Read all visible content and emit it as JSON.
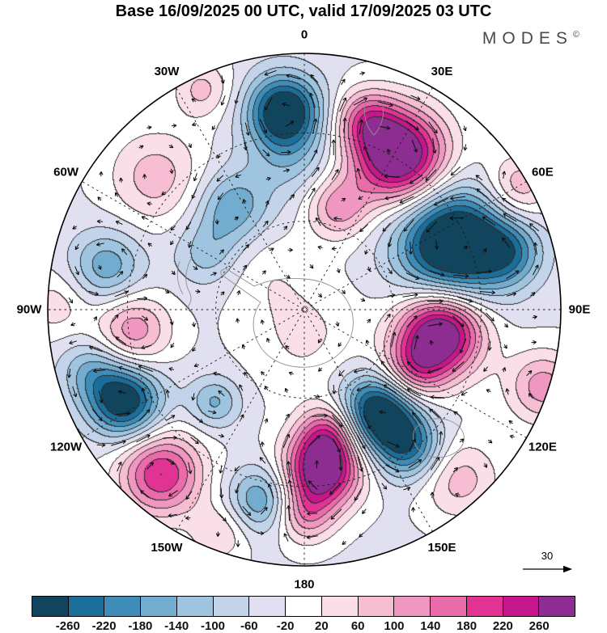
{
  "title": "Base 16/09/2025 00 UTC, valid 17/09/2025 03 UTC",
  "branding": {
    "name": "MODES",
    "mark": "©"
  },
  "chart_data": {
    "type": "heatmap",
    "subtype": "filled-contour polar stereographic anomaly map with wind vectors",
    "title": "Base 16/09/2025 00 UTC, valid 17/09/2025 03 UTC",
    "projection": "polar stereographic",
    "meridian_labels": [
      {
        "label": "0",
        "angle_deg": 0
      },
      {
        "label": "30E",
        "angle_deg": 30
      },
      {
        "label": "60E",
        "angle_deg": 60
      },
      {
        "label": "90E",
        "angle_deg": 90
      },
      {
        "label": "120E",
        "angle_deg": 120
      },
      {
        "label": "150E",
        "angle_deg": 150
      },
      {
        "label": "180",
        "angle_deg": 180
      },
      {
        "label": "150W",
        "angle_deg": 210
      },
      {
        "label": "120W",
        "angle_deg": 240
      },
      {
        "label": "90W",
        "angle_deg": 270
      },
      {
        "label": "60W",
        "angle_deg": 300
      },
      {
        "label": "30W",
        "angle_deg": 330
      }
    ],
    "graticule": {
      "meridian_step_deg": 30,
      "circle_radii_fraction": [
        0.345,
        0.69
      ]
    },
    "reference_arrow": {
      "label": "30"
    },
    "colorbar": {
      "tick_values": [
        -260,
        -220,
        -180,
        -140,
        -100,
        -60,
        -20,
        20,
        60,
        100,
        140,
        180,
        220,
        260
      ],
      "tick_labels": [
        "-260",
        "-220",
        "-180",
        "-140",
        "-100",
        "-60",
        "-20",
        "20",
        "60",
        "100",
        "140",
        "180",
        "220",
        "260"
      ],
      "colors": [
        "#11455e",
        "#1b6d9a",
        "#3e8cb8",
        "#72accf",
        "#9ec4e0",
        "#c3d4ea",
        "#e1e0f0",
        "#ffffff",
        "#fadee8",
        "#f6bdd3",
        "#f097c1",
        "#e96ba9",
        "#e03394",
        "#c5168b",
        "#8d2d91"
      ]
    },
    "base_value": -28,
    "anomaly_centers": [
      {
        "x": -0.08,
        "y": -0.78,
        "amp": -290,
        "sigma": 0.1
      },
      {
        "x": -0.06,
        "y": -0.6,
        "amp": -90,
        "sigma": 0.12
      },
      {
        "x": -0.28,
        "y": -0.4,
        "amp": -140,
        "sigma": 0.1
      },
      {
        "x": -0.38,
        "y": -0.22,
        "amp": -90,
        "sigma": 0.09
      },
      {
        "x": 0.58,
        "y": -0.26,
        "amp": -360,
        "sigma": 0.15
      },
      {
        "x": 0.8,
        "y": -0.22,
        "amp": -140,
        "sigma": 0.09
      },
      {
        "x": -0.77,
        "y": -0.17,
        "amp": -140,
        "sigma": 0.1
      },
      {
        "x": -0.7,
        "y": 0.36,
        "amp": -280,
        "sigma": 0.1
      },
      {
        "x": -0.83,
        "y": 0.24,
        "amp": -110,
        "sigma": 0.09
      },
      {
        "x": -0.35,
        "y": 0.36,
        "amp": -120,
        "sigma": 0.07
      },
      {
        "x": 0.29,
        "y": 0.4,
        "amp": -320,
        "sigma": 0.105
      },
      {
        "x": 0.41,
        "y": 0.54,
        "amp": -190,
        "sigma": 0.09
      },
      {
        "x": -0.17,
        "y": 0.74,
        "amp": -160,
        "sigma": 0.09
      },
      {
        "x": 0.37,
        "y": -0.6,
        "amp": 380,
        "sigma": 0.13
      },
      {
        "x": 0.24,
        "y": -0.74,
        "amp": 160,
        "sigma": 0.085
      },
      {
        "x": 0.53,
        "y": 0.09,
        "amp": 370,
        "sigma": 0.115
      },
      {
        "x": 0.42,
        "y": 0.24,
        "amp": 170,
        "sigma": 0.09
      },
      {
        "x": 0.07,
        "y": 0.62,
        "amp": 360,
        "sigma": 0.105
      },
      {
        "x": 0.1,
        "y": 0.47,
        "amp": 160,
        "sigma": 0.08
      },
      {
        "x": 0.0,
        "y": 0.8,
        "amp": 140,
        "sigma": 0.08
      },
      {
        "x": -0.56,
        "y": 0.64,
        "amp": 250,
        "sigma": 0.115
      },
      {
        "x": -0.67,
        "y": 0.08,
        "amp": 160,
        "sigma": 0.1
      },
      {
        "x": -0.97,
        "y": -0.02,
        "amp": 70,
        "sigma": 0.09
      },
      {
        "x": 0.13,
        "y": -0.4,
        "amp": 150,
        "sigma": 0.085
      },
      {
        "x": -0.58,
        "y": -0.52,
        "amp": 110,
        "sigma": 0.13
      },
      {
        "x": 0.93,
        "y": 0.3,
        "amp": 150,
        "sigma": 0.1
      },
      {
        "x": 0.6,
        "y": 0.66,
        "amp": 110,
        "sigma": 0.11
      },
      {
        "x": -0.4,
        "y": -0.86,
        "amp": 100,
        "sigma": 0.08
      },
      {
        "x": 0.83,
        "y": -0.48,
        "amp": 130,
        "sigma": 0.09
      },
      {
        "x": -0.33,
        "y": 0.87,
        "amp": 90,
        "sigma": 0.08
      },
      {
        "x": 0.0,
        "y": 0.1,
        "amp": 55,
        "sigma": 0.16
      },
      {
        "x": -0.15,
        "y": -0.15,
        "amp": 35,
        "sigma": 0.12
      }
    ]
  }
}
